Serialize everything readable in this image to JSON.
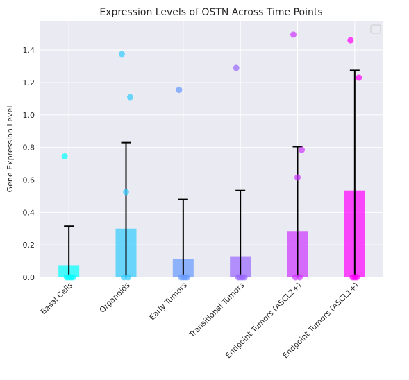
{
  "chart_data": {
    "type": "bar",
    "title": "Expression Levels of OSTN Across Time Points",
    "xlabel": "",
    "ylabel": "Gene Expression Level",
    "ylim": [
      0,
      1.58
    ],
    "yticks": [
      0.0,
      0.2,
      0.4,
      0.6,
      0.8,
      1.0,
      1.2,
      1.4
    ],
    "categories": [
      "Basal Cells",
      "Organoids",
      "Early Tumors",
      "Transitional Tumors",
      "Endpoint Tumors (ASCL2+)",
      "Endpoint Tumors (ASCL1+)"
    ],
    "values": [
      0.075,
      0.3,
      0.115,
      0.13,
      0.285,
      0.535
    ],
    "error": [
      0.24,
      0.53,
      0.365,
      0.405,
      0.52,
      0.74
    ],
    "points": [
      [
        0.745,
        0.0,
        0.0,
        0.0,
        0.0
      ],
      [
        1.375,
        1.11,
        0.525,
        0.0,
        0.0
      ],
      [
        1.155,
        0.0,
        0.0,
        0.0,
        0.0
      ],
      [
        1.29,
        0.0,
        0.0,
        0.0,
        0.0
      ],
      [
        1.495,
        0.785,
        0.615,
        0.0,
        0.0
      ],
      [
        1.46,
        1.23,
        0.0,
        0.0,
        0.0
      ]
    ],
    "colors": [
      "#00ffff",
      "#33ccff",
      "#6699ff",
      "#9966ff",
      "#cc33ff",
      "#ff00ff"
    ],
    "grid": true,
    "legend": "top-right",
    "background": "#eaeaf2"
  }
}
